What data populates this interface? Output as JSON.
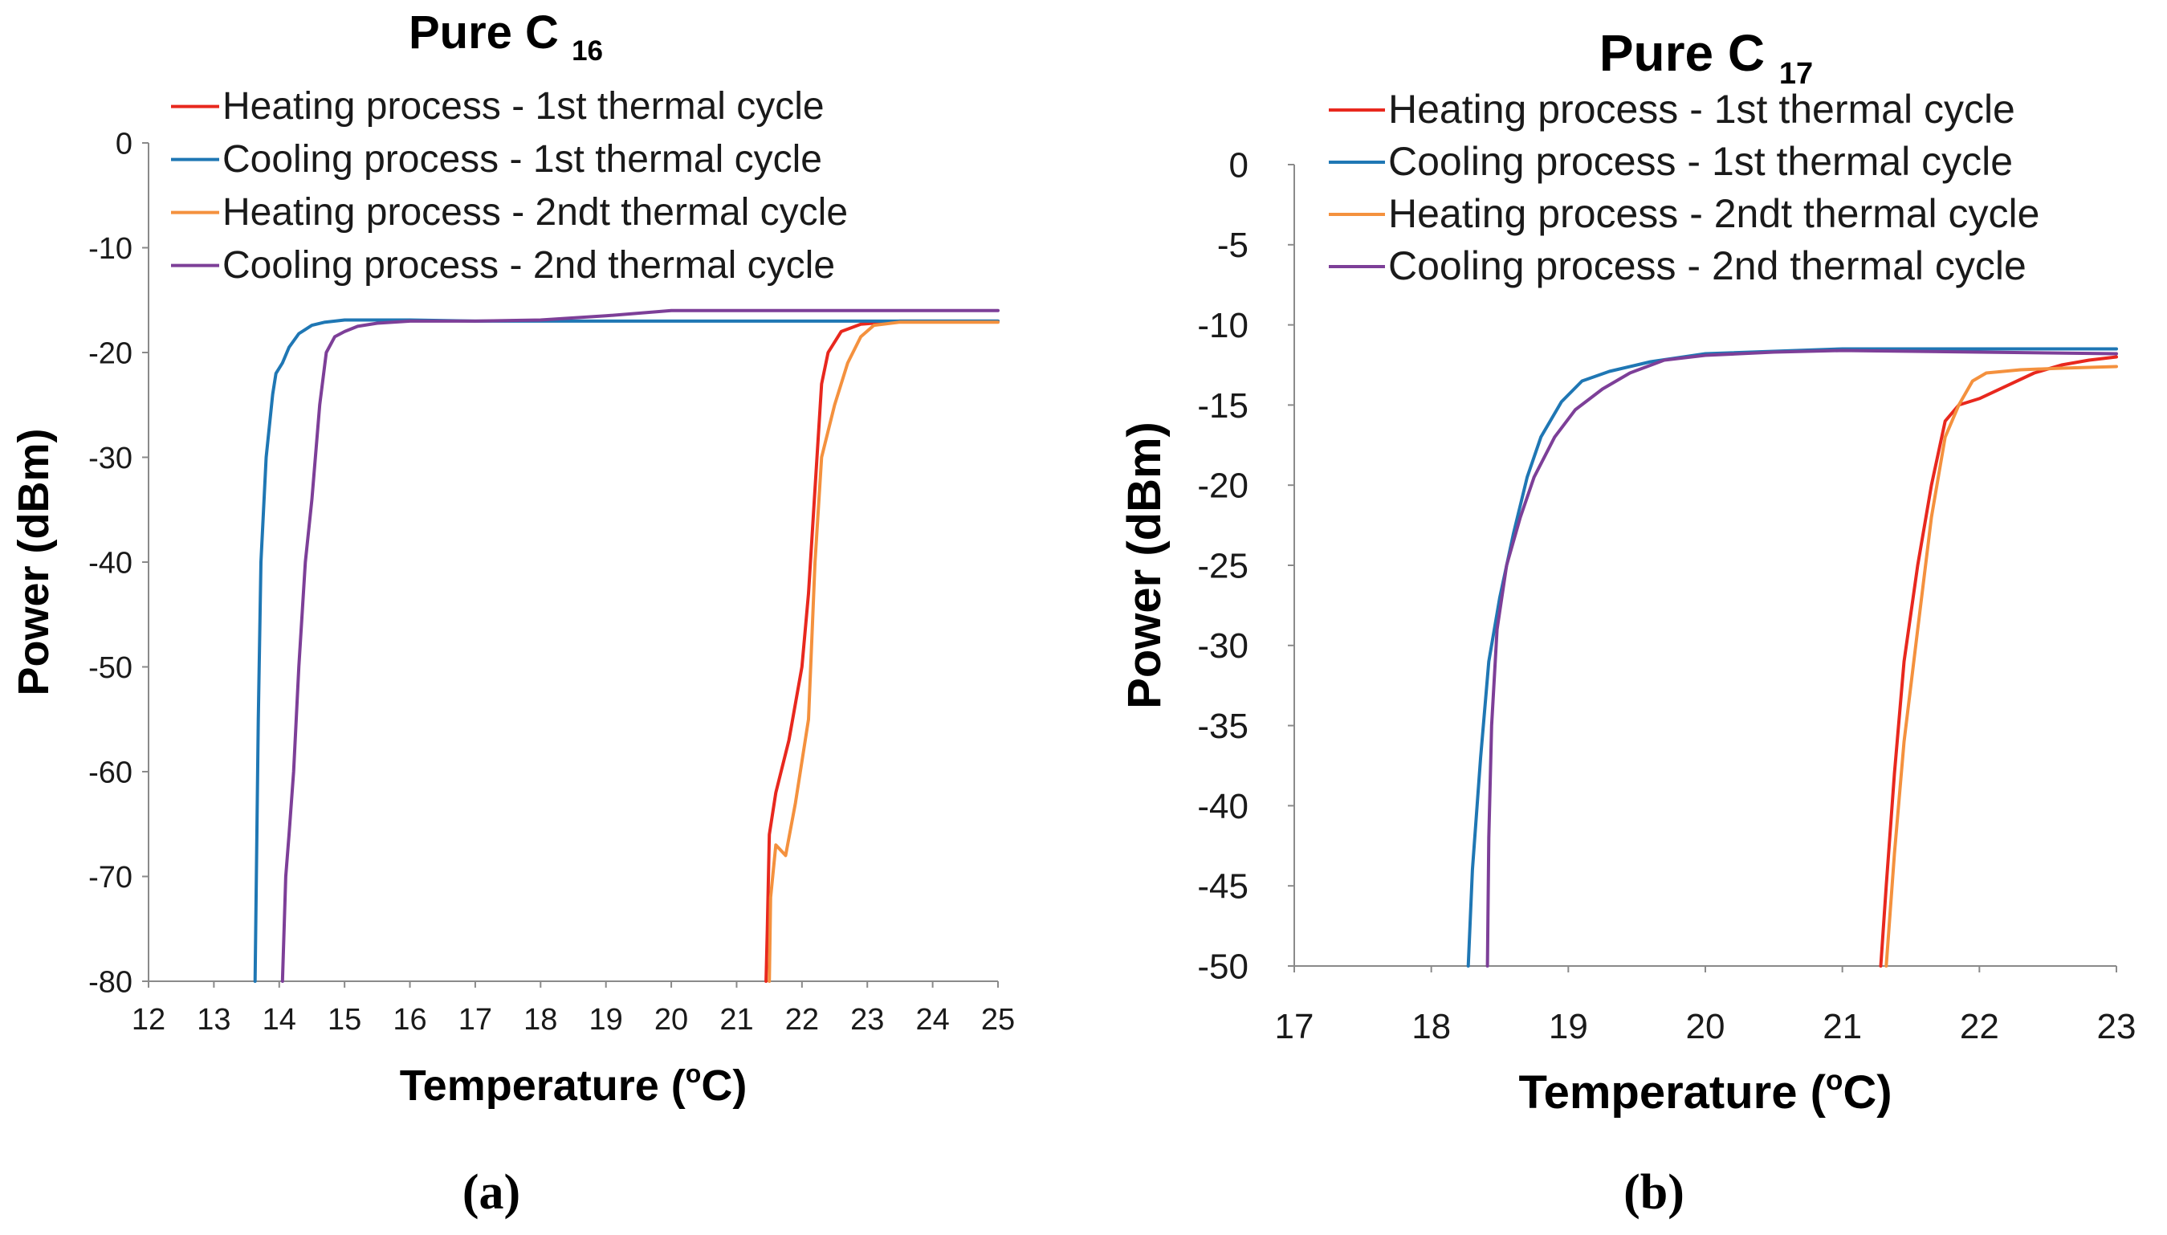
{
  "chart_data": [
    {
      "type": "line",
      "panel_label": "(a)",
      "title": "Pure C",
      "title_subscript": "16",
      "xlabel": "Temperature (",
      "xlabel_superscript": "o",
      "xlabel_suffix": "C)",
      "ylabel": "Power (dBm)",
      "xlim": [
        12,
        25
      ],
      "ylim": [
        -80,
        0
      ],
      "xticks": [
        12,
        13,
        14,
        15,
        16,
        17,
        18,
        19,
        20,
        21,
        22,
        23,
        24,
        25
      ],
      "yticks": [
        0,
        -10,
        -20,
        -30,
        -40,
        -50,
        -60,
        -70,
        -80
      ],
      "legend_position": "top-right",
      "series": [
        {
          "name": "Heating process - 1st thermal cycle",
          "color": "#e8281e",
          "points": [
            [
              21.45,
              -80
            ],
            [
              21.47,
              -75
            ],
            [
              21.5,
              -66
            ],
            [
              21.6,
              -62
            ],
            [
              21.8,
              -57
            ],
            [
              22.0,
              -50
            ],
            [
              22.1,
              -43
            ],
            [
              22.2,
              -33
            ],
            [
              22.3,
              -23
            ],
            [
              22.4,
              -20
            ],
            [
              22.6,
              -18
            ],
            [
              22.9,
              -17.3
            ],
            [
              23.5,
              -17
            ],
            [
              25,
              -17
            ]
          ]
        },
        {
          "name": "Cooling process - 1st thermal cycle",
          "color": "#1f77b4",
          "points": [
            [
              25,
              -17
            ],
            [
              20,
              -17
            ],
            [
              17,
              -17
            ],
            [
              16,
              -16.9
            ],
            [
              15.5,
              -16.9
            ],
            [
              15,
              -16.9
            ],
            [
              14.7,
              -17.1
            ],
            [
              14.5,
              -17.4
            ],
            [
              14.3,
              -18.2
            ],
            [
              14.15,
              -19.5
            ],
            [
              14.05,
              -21
            ],
            [
              13.95,
              -22
            ],
            [
              13.9,
              -24
            ],
            [
              13.8,
              -30
            ],
            [
              13.72,
              -40
            ],
            [
              13.68,
              -55
            ],
            [
              13.65,
              -70
            ],
            [
              13.63,
              -80
            ]
          ]
        },
        {
          "name": "Heating process - 2ndt thermal cycle",
          "color": "#f4913e",
          "points": [
            [
              21.5,
              -80
            ],
            [
              21.52,
              -72
            ],
            [
              21.6,
              -67
            ],
            [
              21.75,
              -68
            ],
            [
              21.9,
              -63
            ],
            [
              22.1,
              -55
            ],
            [
              22.2,
              -40
            ],
            [
              22.3,
              -30
            ],
            [
              22.5,
              -25
            ],
            [
              22.7,
              -21
            ],
            [
              22.9,
              -18.5
            ],
            [
              23.1,
              -17.4
            ],
            [
              23.5,
              -17.1
            ],
            [
              25,
              -17.1
            ]
          ]
        },
        {
          "name": "Cooling process - 2nd thermal cycle",
          "color": "#7d3f98",
          "points": [
            [
              25,
              -16
            ],
            [
              21,
              -16
            ],
            [
              20,
              -16
            ],
            [
              19,
              -16.5
            ],
            [
              18,
              -16.9
            ],
            [
              17,
              -17
            ],
            [
              16,
              -17
            ],
            [
              15.5,
              -17.2
            ],
            [
              15.2,
              -17.5
            ],
            [
              15,
              -18
            ],
            [
              14.85,
              -18.5
            ],
            [
              14.72,
              -20
            ],
            [
              14.62,
              -25
            ],
            [
              14.5,
              -34
            ],
            [
              14.4,
              -40
            ],
            [
              14.3,
              -50
            ],
            [
              14.22,
              -60
            ],
            [
              14.15,
              -66
            ],
            [
              14.1,
              -70
            ],
            [
              14.05,
              -80
            ]
          ]
        }
      ]
    },
    {
      "type": "line",
      "panel_label": "(b)",
      "title": "Pure C",
      "title_subscript": "17",
      "xlabel": "Temperature (",
      "xlabel_superscript": "o",
      "xlabel_suffix": "C)",
      "ylabel": "Power (dBm)",
      "xlim": [
        17,
        23
      ],
      "ylim": [
        -50,
        0
      ],
      "xticks": [
        17,
        18,
        19,
        20,
        21,
        22,
        23
      ],
      "yticks": [
        0,
        -5,
        -10,
        -15,
        -20,
        -25,
        -30,
        -35,
        -40,
        -45,
        -50
      ],
      "legend_position": "top-right",
      "series": [
        {
          "name": "Heating process - 1st thermal cycle",
          "color": "#e8281e",
          "points": [
            [
              21.28,
              -50
            ],
            [
              21.32,
              -45
            ],
            [
              21.38,
              -38
            ],
            [
              21.45,
              -31
            ],
            [
              21.55,
              -25
            ],
            [
              21.65,
              -20
            ],
            [
              21.75,
              -16
            ],
            [
              21.85,
              -15
            ],
            [
              22.0,
              -14.6
            ],
            [
              22.2,
              -13.8
            ],
            [
              22.4,
              -13
            ],
            [
              22.6,
              -12.5
            ],
            [
              22.8,
              -12.2
            ],
            [
              23,
              -12
            ]
          ]
        },
        {
          "name": "Cooling process - 1st thermal cycle",
          "color": "#1f77b4",
          "points": [
            [
              23,
              -11.5
            ],
            [
              22,
              -11.5
            ],
            [
              21,
              -11.5
            ],
            [
              20,
              -11.8
            ],
            [
              19.6,
              -12.3
            ],
            [
              19.3,
              -12.9
            ],
            [
              19.1,
              -13.5
            ],
            [
              18.95,
              -14.8
            ],
            [
              18.8,
              -17
            ],
            [
              18.7,
              -19.5
            ],
            [
              18.6,
              -23
            ],
            [
              18.5,
              -27
            ],
            [
              18.42,
              -31
            ],
            [
              18.36,
              -37
            ],
            [
              18.3,
              -44
            ],
            [
              18.27,
              -50
            ]
          ]
        },
        {
          "name": "Heating process - 2ndt thermal cycle",
          "color": "#f4913e",
          "points": [
            [
              21.32,
              -50
            ],
            [
              21.38,
              -43
            ],
            [
              21.45,
              -36
            ],
            [
              21.55,
              -29
            ],
            [
              21.65,
              -22
            ],
            [
              21.75,
              -17
            ],
            [
              21.85,
              -15
            ],
            [
              21.95,
              -13.5
            ],
            [
              22.05,
              -13
            ],
            [
              22.3,
              -12.8
            ],
            [
              22.6,
              -12.7
            ],
            [
              23,
              -12.6
            ]
          ]
        },
        {
          "name": "Cooling process - 2nd thermal cycle",
          "color": "#7d3f98",
          "points": [
            [
              23,
              -11.8
            ],
            [
              22,
              -11.7
            ],
            [
              21,
              -11.6
            ],
            [
              20.5,
              -11.7
            ],
            [
              20,
              -11.9
            ],
            [
              19.7,
              -12.2
            ],
            [
              19.45,
              -13
            ],
            [
              19.25,
              -14
            ],
            [
              19.05,
              -15.3
            ],
            [
              18.9,
              -17
            ],
            [
              18.75,
              -19.5
            ],
            [
              18.65,
              -22
            ],
            [
              18.55,
              -25
            ],
            [
              18.48,
              -29
            ],
            [
              18.44,
              -35
            ],
            [
              18.42,
              -42
            ],
            [
              18.41,
              -50
            ]
          ]
        }
      ]
    }
  ]
}
